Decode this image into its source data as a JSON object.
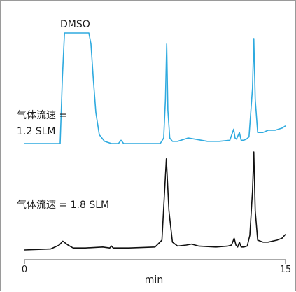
{
  "chart_data": {
    "type": "line",
    "title": "",
    "xlabel": "min",
    "ylabel": "",
    "xlim": [
      0,
      15
    ],
    "xticks": [
      "0",
      "15"
    ],
    "grid": false,
    "annotations": {
      "peak_label": "DMSO",
      "top_trace_label_line1": "气体流速 =",
      "top_trace_label_line2": "1.2 SLM",
      "bottom_trace_label": "气体流速 = 1.8 SLM"
    },
    "series": [
      {
        "color": "#2eaadf",
        "x": [
          0.0,
          2.05,
          2.18,
          2.3,
          2.6,
          3.0,
          3.5,
          3.7,
          3.82,
          3.95,
          4.1,
          4.3,
          4.6,
          5.0,
          5.4,
          5.55,
          5.7,
          6.0,
          7.0,
          7.8,
          8.0,
          8.1,
          8.17,
          8.24,
          8.35,
          8.5,
          8.8,
          9.4,
          9.8,
          10.5,
          11.2,
          11.8,
          12.02,
          12.1,
          12.18,
          12.35,
          12.45,
          12.6,
          12.75,
          12.9,
          13.1,
          13.18,
          13.26,
          13.4,
          13.7,
          14.0,
          14.4,
          14.8,
          15.0
        ],
        "values": [
          0.0,
          0.0,
          0.6,
          1.0,
          1.0,
          1.0,
          1.0,
          1.0,
          0.9,
          0.6,
          0.28,
          0.08,
          0.02,
          0.0,
          0.0,
          0.03,
          0.0,
          0.0,
          0.0,
          0.0,
          0.05,
          0.4,
          0.9,
          0.3,
          0.05,
          0.02,
          0.02,
          0.05,
          0.04,
          0.02,
          0.02,
          0.03,
          0.13,
          0.05,
          0.04,
          0.1,
          0.03,
          0.03,
          0.04,
          0.06,
          0.5,
          0.95,
          0.4,
          0.1,
          0.1,
          0.12,
          0.12,
          0.14,
          0.16
        ]
      },
      {
        "color": "#111111",
        "x": [
          0.0,
          1.5,
          2.0,
          2.2,
          2.5,
          2.8,
          3.5,
          4.5,
          4.9,
          5.0,
          5.1,
          6.0,
          7.5,
          7.9,
          8.05,
          8.15,
          8.3,
          8.5,
          8.8,
          9.3,
          9.6,
          10.0,
          11.0,
          11.7,
          11.9,
          12.05,
          12.15,
          12.25,
          12.35,
          12.45,
          12.6,
          12.8,
          12.95,
          13.1,
          13.18,
          13.26,
          13.4,
          13.7,
          14.0,
          14.5,
          14.8,
          15.0
        ],
        "values": [
          0.0,
          0.01,
          0.05,
          0.09,
          0.05,
          0.02,
          0.02,
          0.03,
          0.02,
          0.04,
          0.02,
          0.02,
          0.03,
          0.1,
          0.6,
          0.93,
          0.4,
          0.08,
          0.04,
          0.05,
          0.06,
          0.04,
          0.03,
          0.04,
          0.05,
          0.12,
          0.05,
          0.03,
          0.08,
          0.03,
          0.03,
          0.04,
          0.15,
          0.6,
          1.0,
          0.4,
          0.1,
          0.08,
          0.08,
          0.1,
          0.12,
          0.16
        ]
      }
    ]
  }
}
